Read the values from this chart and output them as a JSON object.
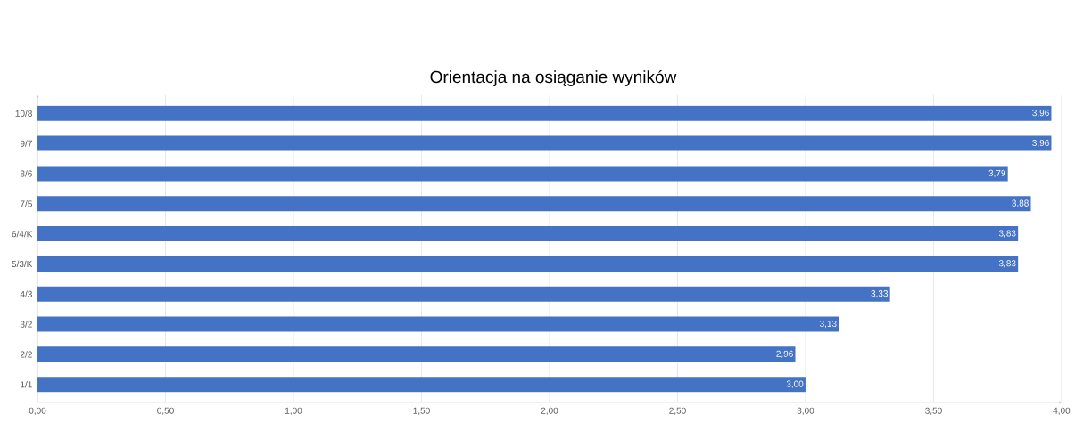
{
  "chart_data": {
    "type": "bar",
    "orientation": "horizontal",
    "title": "Orientacja na osiąganie wyników",
    "categories": [
      "10/8",
      "9/7",
      "8/6",
      "7/5",
      "6/4/K",
      "5/3/K",
      "4/3",
      "3/2",
      "2/2",
      "1/1"
    ],
    "values": [
      3.96,
      3.96,
      3.79,
      3.88,
      3.83,
      3.83,
      3.33,
      3.13,
      2.96,
      3.0
    ],
    "value_labels": [
      "3,96",
      "3,96",
      "3,79",
      "3,88",
      "3,83",
      "3,83",
      "3,33",
      "3,13",
      "2,96",
      "3,00"
    ],
    "color": "#4472c4",
    "xlim": [
      0,
      4
    ],
    "xticks": [
      {
        "value": 0,
        "label": "0,00"
      },
      {
        "value": 0.5,
        "label": "0,50"
      },
      {
        "value": 1,
        "label": "1,00"
      },
      {
        "value": 1.5,
        "label": "1,50"
      },
      {
        "value": 2,
        "label": "2,00"
      },
      {
        "value": 2.5,
        "label": "2,50"
      },
      {
        "value": 3,
        "label": "3,00"
      },
      {
        "value": 3.5,
        "label": "3,50"
      },
      {
        "value": 4,
        "label": "4,00"
      }
    ],
    "grid": "x"
  }
}
